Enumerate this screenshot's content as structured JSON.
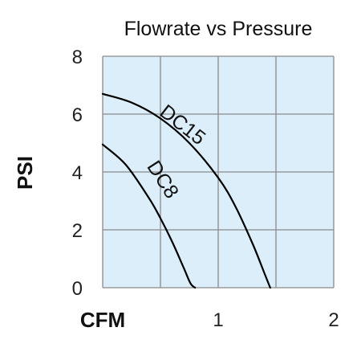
{
  "chart_data": {
    "type": "line",
    "title": "Flowrate vs Pressure",
    "xlabel": "CFM",
    "ylabel": "PSI",
    "xlim": [
      0,
      2
    ],
    "ylim": [
      0,
      8
    ],
    "x_tick_labels": [
      "1",
      "2"
    ],
    "x_tick_values": [
      1,
      2
    ],
    "y_tick_labels": [
      "0",
      "2",
      "4",
      "6",
      "8"
    ],
    "y_tick_values": [
      0,
      2,
      4,
      6,
      8
    ],
    "grid": true,
    "colors": {
      "plot_background": "#dceefa",
      "grid": "#8a8a8a",
      "line": "#000000"
    },
    "series": [
      {
        "name": "DC15",
        "x": [
          0,
          0.25,
          0.5,
          0.75,
          1.0,
          1.15,
          1.3,
          1.4,
          1.45
        ],
        "y": [
          6.7,
          6.4,
          5.85,
          5.0,
          3.8,
          2.8,
          1.5,
          0.5,
          0
        ]
      },
      {
        "name": "DC8",
        "x": [
          0,
          0.2,
          0.4,
          0.5,
          0.6,
          0.7,
          0.76,
          0.8
        ],
        "y": [
          4.95,
          4.25,
          3.1,
          2.4,
          1.6,
          0.7,
          0.15,
          0
        ]
      }
    ]
  }
}
